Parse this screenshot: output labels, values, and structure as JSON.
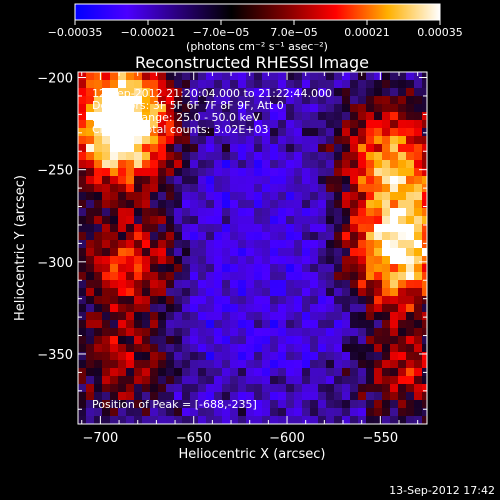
{
  "chart_data": {
    "type": "heatmap",
    "title": "Reconstructed RHESSI Image",
    "xlabel": "Heliocentric X (arcsec)",
    "ylabel": "Heliocentric Y (arcsec)",
    "xlim": [
      -712,
      -525
    ],
    "ylim": [
      -388,
      -197
    ],
    "x_ticks": [
      -700,
      -650,
      -600,
      -550
    ],
    "x_tick_labels": [
      "−700",
      "−650",
      "−600",
      "−550"
    ],
    "y_ticks": [
      -200,
      -250,
      -300,
      -350
    ],
    "y_tick_labels": [
      "−200",
      "−250",
      "−300",
      "−350"
    ],
    "colorbar": {
      "range": [
        -0.00035,
        0.00035
      ],
      "ticks": [
        -0.00035,
        -0.00021,
        -7e-05,
        7e-05,
        0.00021,
        0.00035
      ],
      "tick_labels": [
        "−0.00035",
        "−0.00021",
        "−7.0e−05",
        "7.0e−05",
        "0.00021",
        "0.00035"
      ],
      "units": "(photons cm⁻² s⁻¹ asec⁻²)",
      "colors": [
        "#0000ff",
        "#4b00ff",
        "#2a007a",
        "#000000",
        "#7a0000",
        "#ff0000",
        "#ffb000",
        "#ffffff"
      ]
    },
    "hot_regions": [
      {
        "x": -688,
        "y": -235,
        "intensity": 1.0
      },
      {
        "x": -690,
        "y": -210,
        "intensity": 0.85
      },
      {
        "x": -685,
        "y": -300,
        "intensity": 0.7
      },
      {
        "x": -540,
        "y": -300,
        "intensity": 0.95
      },
      {
        "x": -545,
        "y": -235,
        "intensity": 0.75
      },
      {
        "x": -540,
        "y": -270,
        "intensity": 0.7
      },
      {
        "x": -535,
        "y": -360,
        "intensity": 0.6
      },
      {
        "x": -690,
        "y": -355,
        "intensity": 0.55
      }
    ],
    "peak": {
      "x": -688,
      "y": -235
    },
    "grid": false,
    "legend": "none"
  },
  "info": {
    "time_range": "12-Sep-2012 21:20:04.000 to 21:22:44.000",
    "detectors": "Detectors: 3F 5F 6F 7F 8F 9F, Att 0",
    "energy": "Energy Range: 25.0 - 50.0 keV",
    "clean": "Clean     Total counts: 3.02E+03",
    "peak_text": "Position of Peak = [-688,-235]"
  },
  "footer": {
    "date": "13-Sep-2012 17:42"
  }
}
